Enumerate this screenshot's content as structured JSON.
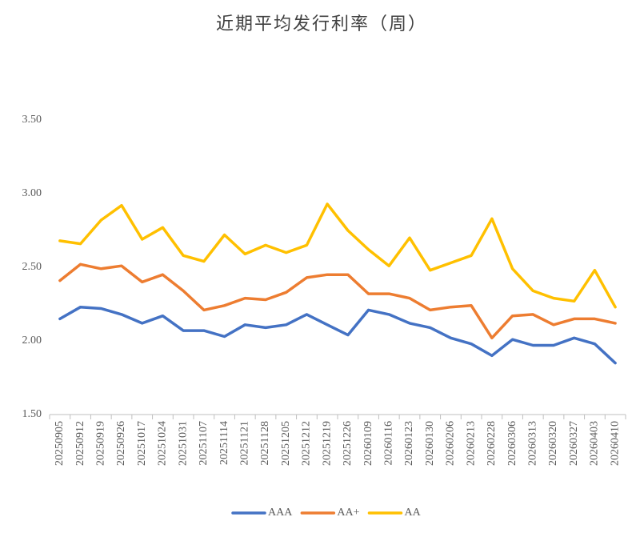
{
  "chart_data": {
    "type": "line",
    "title": "近期平均发行利率（周）",
    "categories": [
      "20250905",
      "20250912",
      "20250919",
      "20250926",
      "20251017",
      "20251024",
      "20251031",
      "20251107",
      "20251114",
      "20251121",
      "20251128",
      "20251205",
      "20251212",
      "20251219",
      "20251226",
      "20260109",
      "20260116",
      "20260123",
      "20260130",
      "20260206",
      "20260213",
      "20260228",
      "20260306",
      "20260313",
      "20260320",
      "20260327",
      "20260403",
      "20260410"
    ],
    "series": [
      {
        "name": "AAA",
        "color": "#4472c4",
        "values": [
          2.15,
          2.23,
          2.22,
          2.18,
          2.12,
          2.17,
          2.07,
          2.07,
          2.03,
          2.11,
          2.09,
          2.11,
          2.18,
          2.11,
          2.04,
          2.21,
          2.18,
          2.12,
          2.09,
          2.02,
          1.98,
          1.9,
          2.01,
          1.97,
          1.97,
          2.02,
          1.98,
          1.85
        ]
      },
      {
        "name": "AA+",
        "color": "#ed7d31",
        "values": [
          2.41,
          2.52,
          2.49,
          2.51,
          2.4,
          2.45,
          2.34,
          2.21,
          2.24,
          2.29,
          2.28,
          2.33,
          2.43,
          2.45,
          2.45,
          2.32,
          2.32,
          2.29,
          2.21,
          2.23,
          2.24,
          2.02,
          2.17,
          2.18,
          2.11,
          2.15,
          2.15,
          2.12
        ]
      },
      {
        "name": "AA",
        "color": "#ffc000",
        "values": [
          2.68,
          2.66,
          2.82,
          2.92,
          2.69,
          2.77,
          2.58,
          2.54,
          2.72,
          2.59,
          2.65,
          2.6,
          2.65,
          2.93,
          2.75,
          2.62,
          2.51,
          2.7,
          2.48,
          2.53,
          2.58,
          2.83,
          2.49,
          2.34,
          2.29,
          2.27,
          2.48,
          2.23
        ]
      }
    ],
    "ylim": [
      1.5,
      3.5
    ],
    "yticks": [
      {
        "value": 1.5,
        "label": "1.50"
      },
      {
        "value": 2,
        "label": "2.00"
      },
      {
        "value": 2.5,
        "label": "2.50"
      },
      {
        "value": 3,
        "label": "3.00"
      },
      {
        "value": 3.5,
        "label": "3.50"
      }
    ],
    "grid": false,
    "legend": "bottom"
  }
}
